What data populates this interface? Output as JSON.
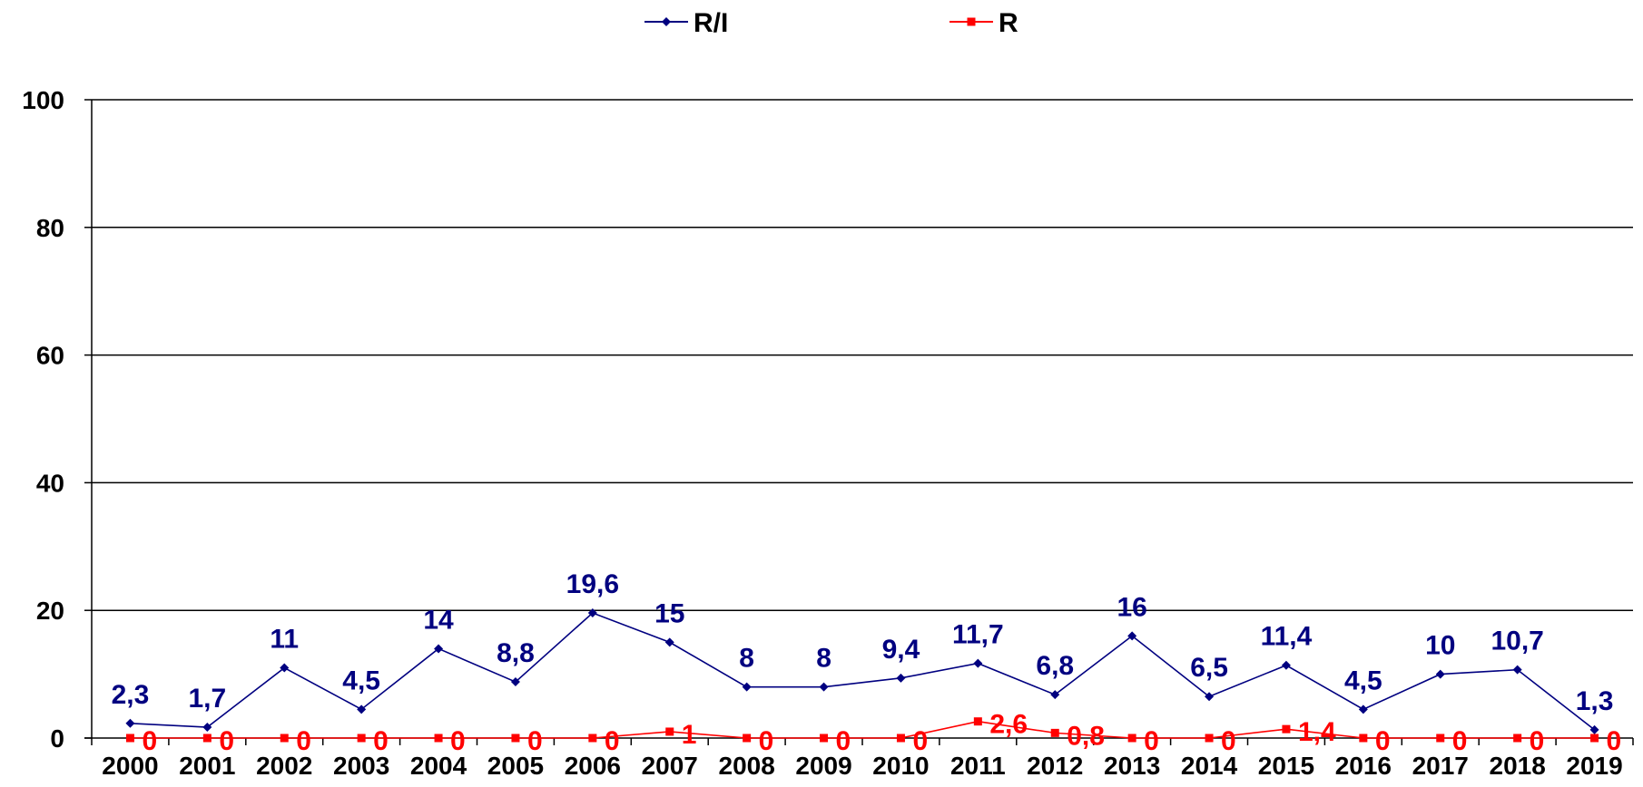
{
  "chart_data": {
    "type": "line",
    "categories": [
      "2000",
      "2001",
      "2002",
      "2003",
      "2004",
      "2005",
      "2006",
      "2007",
      "2008",
      "2009",
      "2010",
      "2011",
      "2012",
      "2013",
      "2014",
      "2015",
      "2016",
      "2017",
      "2018",
      "2019"
    ],
    "series": [
      {
        "name": "R/I",
        "color": "#000080",
        "marker": "diamond",
        "values": [
          2.3,
          1.7,
          11,
          4.5,
          14,
          8.8,
          19.6,
          15,
          8,
          8,
          9.4,
          11.7,
          6.8,
          16,
          6.5,
          11.4,
          4.5,
          10,
          10.7,
          1.3
        ],
        "labels": [
          "2,3",
          "1,7",
          "11",
          "4,5",
          "14",
          "8,8",
          "19,6",
          "15",
          "8",
          "8",
          "9,4",
          "11,7",
          "6,8",
          "16",
          "6,5",
          "11,4",
          "4,5",
          "10",
          "10,7",
          "1,3"
        ]
      },
      {
        "name": "R",
        "color": "#ff0000",
        "marker": "square",
        "values": [
          0,
          0,
          0,
          0,
          0,
          0,
          0,
          1,
          0,
          0,
          0,
          2.6,
          0.8,
          0,
          0,
          1.4,
          0,
          0,
          0,
          0
        ],
        "labels": [
          "0",
          "0",
          "0",
          "0",
          "0",
          "0",
          "0",
          "1",
          "0",
          "0",
          "0",
          "2,6",
          "0,8",
          "0",
          "0",
          "1,4",
          "0",
          "0",
          "0",
          "0"
        ]
      }
    ],
    "yticks": [
      "0",
      "20",
      "40",
      "60",
      "80",
      "100"
    ],
    "ylim": [
      0,
      100
    ],
    "grid": true,
    "legend_position": "top-center"
  }
}
